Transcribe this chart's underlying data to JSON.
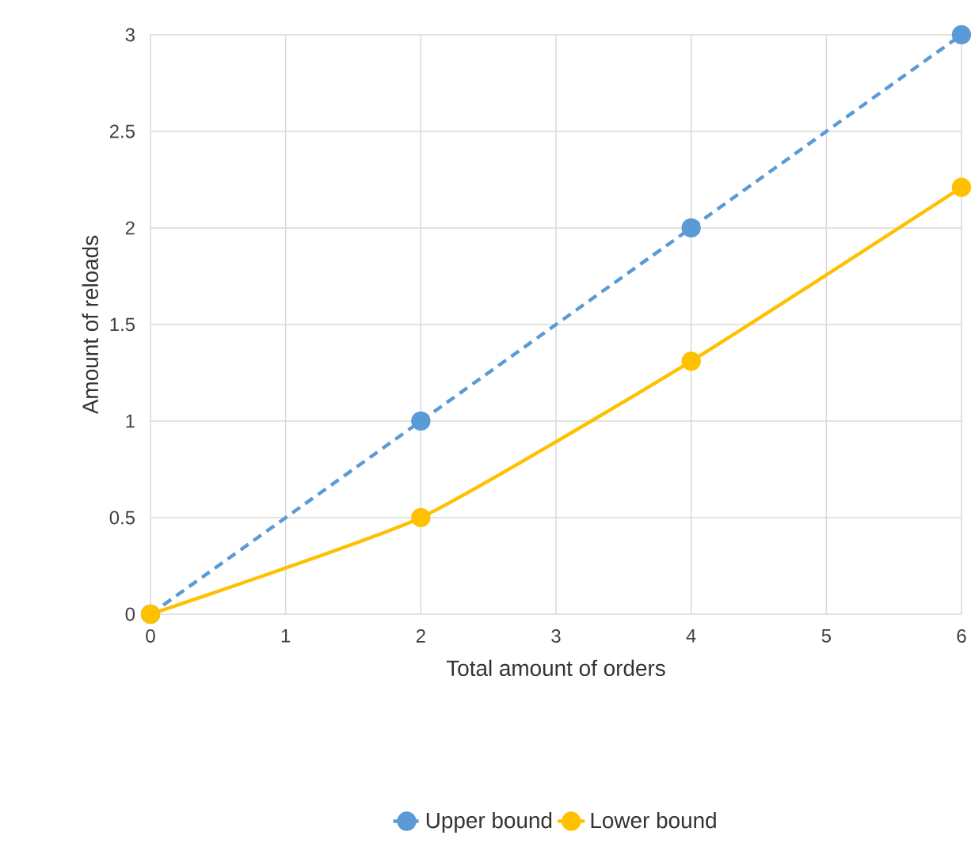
{
  "chart_data": {
    "type": "line",
    "xlabel": "Total amount of orders",
    "ylabel": "Amount of reloads",
    "x": [
      0,
      2,
      4,
      6
    ],
    "series": [
      {
        "name": "Upper bound",
        "color": "#5b9bd5",
        "values": [
          0,
          1,
          2,
          3
        ],
        "line_style": "dashed"
      },
      {
        "name": "Lower bound",
        "color": "#ffc000",
        "values": [
          0,
          0.5,
          1.31,
          2.21
        ],
        "line_style": "solid"
      }
    ],
    "xlim": [
      0,
      6
    ],
    "xticks": [
      0,
      1,
      2,
      3,
      4,
      5,
      6
    ],
    "ylim": [
      0,
      3
    ],
    "yticks": [
      0,
      0.5,
      1,
      1.5,
      2,
      2.5,
      3
    ],
    "grid": true,
    "legend": "bottom",
    "marker": "circle"
  }
}
